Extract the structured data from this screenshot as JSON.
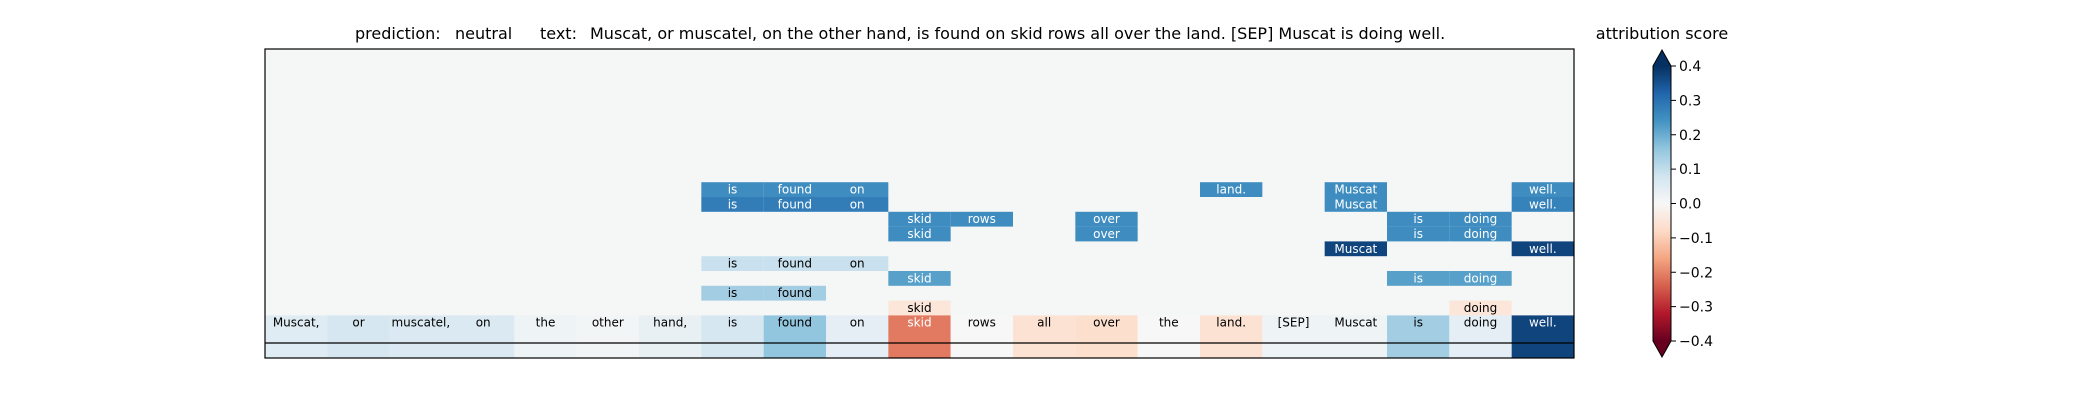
{
  "chart_data": {
    "type": "heatmap",
    "header": {
      "prediction_label": "prediction:",
      "prediction_value": "neutral",
      "text_label": "text:",
      "text_value": "Muscat, or muscatel, on the other hand, is found on skid rows all over the land. [SEP] Muscat is doing well."
    },
    "tokens": [
      "Muscat,",
      "or",
      "muscatel,",
      "on",
      "the",
      "other",
      "hand,",
      "is",
      "found",
      "on",
      "skid",
      "rows",
      "all",
      "over",
      "the",
      "land.",
      "[SEP]",
      "Muscat",
      "is",
      "doing",
      "well."
    ],
    "token_scores": [
      0.05,
      0.07,
      0.06,
      0.06,
      0.02,
      0.01,
      0.03,
      0.07,
      0.16,
      0.04,
      -0.21,
      0.0,
      -0.06,
      -0.07,
      0.0,
      -0.06,
      0.02,
      0.02,
      0.14,
      0.04,
      0.37
    ],
    "rows_note": "rows listed from top to bottom; null = empty cell",
    "rows": [
      [
        null,
        null,
        null,
        null,
        null,
        null,
        null,
        null,
        null,
        null,
        null,
        null,
        null,
        null,
        null,
        null,
        null,
        null,
        null,
        null,
        null
      ],
      [
        null,
        null,
        null,
        null,
        null,
        null,
        null,
        null,
        null,
        null,
        null,
        null,
        null,
        null,
        null,
        null,
        null,
        null,
        null,
        null,
        null
      ],
      [
        null,
        null,
        null,
        null,
        null,
        null,
        null,
        null,
        null,
        null,
        null,
        null,
        null,
        null,
        null,
        null,
        null,
        null,
        null,
        null,
        null
      ],
      [
        null,
        null,
        null,
        null,
        null,
        null,
        null,
        null,
        null,
        null,
        null,
        null,
        null,
        null,
        null,
        null,
        null,
        null,
        null,
        null,
        null
      ],
      [
        null,
        null,
        null,
        null,
        null,
        null,
        null,
        null,
        null,
        null,
        null,
        null,
        null,
        null,
        null,
        null,
        null,
        null,
        null,
        null,
        null
      ],
      [
        null,
        null,
        null,
        null,
        null,
        null,
        null,
        null,
        null,
        null,
        null,
        null,
        null,
        null,
        null,
        null,
        null,
        null,
        null,
        null,
        null
      ],
      [
        null,
        null,
        null,
        null,
        null,
        null,
        null,
        null,
        null,
        null,
        null,
        null,
        null,
        null,
        null,
        null,
        null,
        null,
        null,
        null,
        null
      ],
      [
        null,
        null,
        null,
        null,
        null,
        null,
        null,
        null,
        null,
        null,
        null,
        null,
        null,
        null,
        null,
        null,
        null,
        null,
        null,
        null,
        null
      ],
      [
        null,
        null,
        null,
        null,
        null,
        null,
        null,
        null,
        null,
        null,
        null,
        null,
        null,
        null,
        null,
        null,
        null,
        null,
        null,
        null,
        null
      ],
      [
        null,
        null,
        null,
        null,
        null,
        null,
        null,
        0.25,
        0.25,
        0.25,
        null,
        null,
        null,
        null,
        null,
        0.25,
        null,
        0.25,
        null,
        null,
        0.25
      ],
      [
        null,
        null,
        null,
        null,
        null,
        null,
        null,
        0.28,
        0.28,
        0.28,
        null,
        null,
        null,
        null,
        null,
        null,
        null,
        0.25,
        null,
        null,
        0.27
      ],
      [
        null,
        null,
        null,
        null,
        null,
        null,
        null,
        null,
        null,
        null,
        0.25,
        0.25,
        null,
        0.25,
        null,
        null,
        null,
        null,
        0.25,
        0.25,
        null
      ],
      [
        null,
        null,
        null,
        null,
        null,
        null,
        null,
        null,
        null,
        null,
        0.25,
        null,
        null,
        0.25,
        null,
        null,
        null,
        null,
        0.25,
        0.25,
        null
      ],
      [
        null,
        null,
        null,
        null,
        null,
        null,
        null,
        null,
        null,
        null,
        null,
        null,
        null,
        null,
        null,
        null,
        null,
        0.37,
        null,
        null,
        0.37
      ],
      [
        null,
        null,
        null,
        null,
        null,
        null,
        null,
        0.09,
        0.09,
        0.09,
        null,
        null,
        null,
        null,
        null,
        null,
        null,
        null,
        null,
        null,
        null
      ],
      [
        null,
        null,
        null,
        null,
        null,
        null,
        null,
        null,
        null,
        null,
        0.22,
        null,
        null,
        null,
        null,
        null,
        null,
        null,
        0.22,
        0.22,
        null
      ],
      [
        null,
        null,
        null,
        null,
        null,
        null,
        null,
        0.14,
        0.14,
        null,
        null,
        null,
        null,
        null,
        null,
        null,
        null,
        null,
        null,
        null,
        null
      ],
      [
        null,
        null,
        null,
        null,
        null,
        null,
        null,
        null,
        null,
        null,
        -0.05,
        null,
        null,
        null,
        null,
        null,
        null,
        null,
        null,
        -0.05,
        null
      ]
    ],
    "colorbar": {
      "title": "attribution score",
      "min": -0.4,
      "max": 0.4,
      "ticks": [
        0.4,
        0.3,
        0.2,
        0.1,
        0.0,
        -0.1,
        -0.2,
        -0.3,
        -0.4
      ],
      "tick_labels": [
        "0.4",
        "0.3",
        "0.2",
        "0.1",
        "0.0",
        "−0.1",
        "−0.2",
        "−0.3",
        "−0.4"
      ],
      "colormap": "RdBu",
      "extend": "both"
    },
    "background_color": "#f5f6f6"
  }
}
